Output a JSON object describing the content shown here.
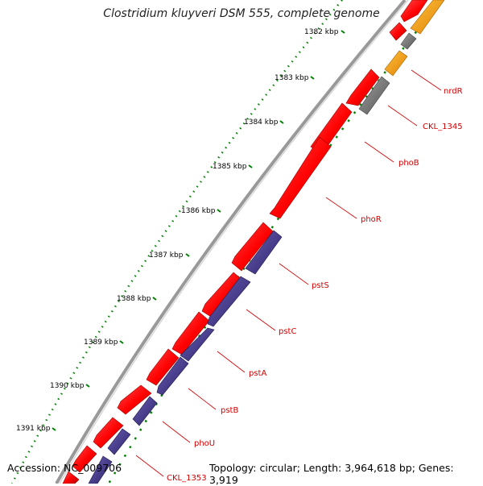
{
  "title": "Clostridium kluyveri DSM 555, complete genome",
  "footer": {
    "accession": "Accession: NC_009706",
    "summary": "Topology: circular; Length: 3,964,618 bp; Genes: 3,919"
  },
  "ticks": [
    "1382 kbp",
    "1383 kbp",
    "1384 kbp",
    "1385 kbp",
    "1386 kbp",
    "1387 kbp",
    "1388 kbp",
    "1389 kbp",
    "1390 kbp",
    "1391 kbp"
  ],
  "gene_labels": [
    "nrdR",
    "CKL_1345",
    "phoB",
    "phoR",
    "pstS",
    "pstC",
    "pstA",
    "pstB",
    "phoU",
    "CKL_1353"
  ],
  "colors": {
    "forward_gene": "#ff0000",
    "reverse_gene": "#483d8b",
    "other_gene": "#808080",
    "orange_gene": "#ffa500",
    "label": "#d40000",
    "tick_line": "#008000",
    "backbone": "#888888"
  }
}
